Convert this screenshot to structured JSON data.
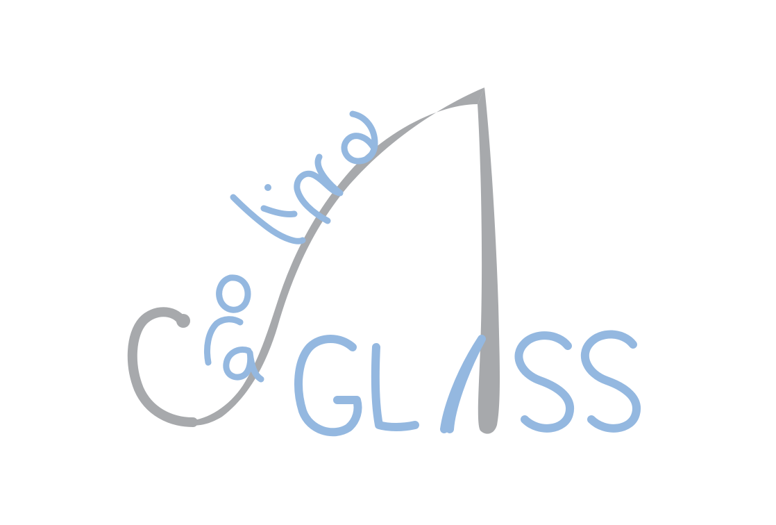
{
  "logo": {
    "brand_text": "Carolina GLASS",
    "colors": {
      "gray": "#a7a9ac",
      "blue": "#94b8e0",
      "background": "#ffffff"
    }
  }
}
